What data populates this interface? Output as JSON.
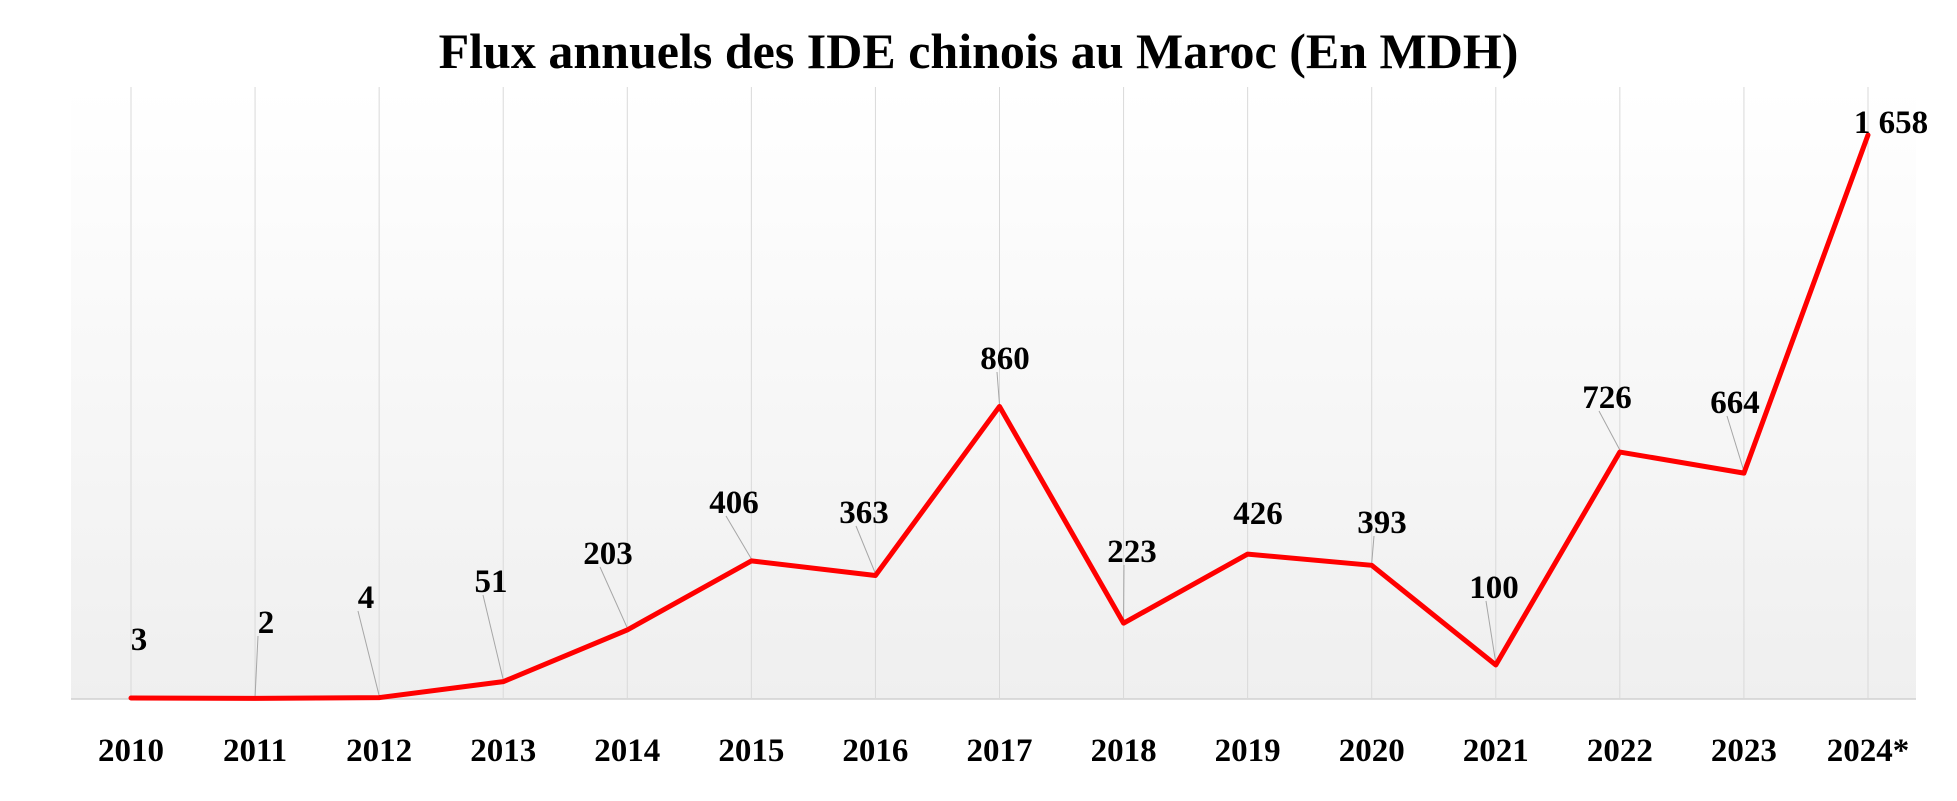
{
  "chart_data": {
    "type": "line",
    "title": "Flux annuels des IDE chinois au Maroc (En MDH)",
    "xlabel": "",
    "ylabel": "",
    "categories": [
      "2010",
      "2011",
      "2012",
      "2013",
      "2014",
      "2015",
      "2016",
      "2017",
      "2018",
      "2019",
      "2020",
      "2021",
      "2022",
      "2023",
      "2024*"
    ],
    "series": [
      {
        "values": [
          3,
          2,
          4,
          51,
          203,
          406,
          363,
          860,
          223,
          426,
          393,
          100,
          726,
          664,
          1658
        ],
        "data_labels": [
          "3",
          "2",
          "4",
          "51",
          "203",
          "406",
          "363",
          "860",
          "223",
          "426",
          "393",
          "100",
          "726",
          "664",
          "1 658"
        ],
        "color": "#ff0000"
      }
    ],
    "ylim": [
      0,
      1658
    ],
    "grid": "vertical",
    "legend": "none"
  }
}
